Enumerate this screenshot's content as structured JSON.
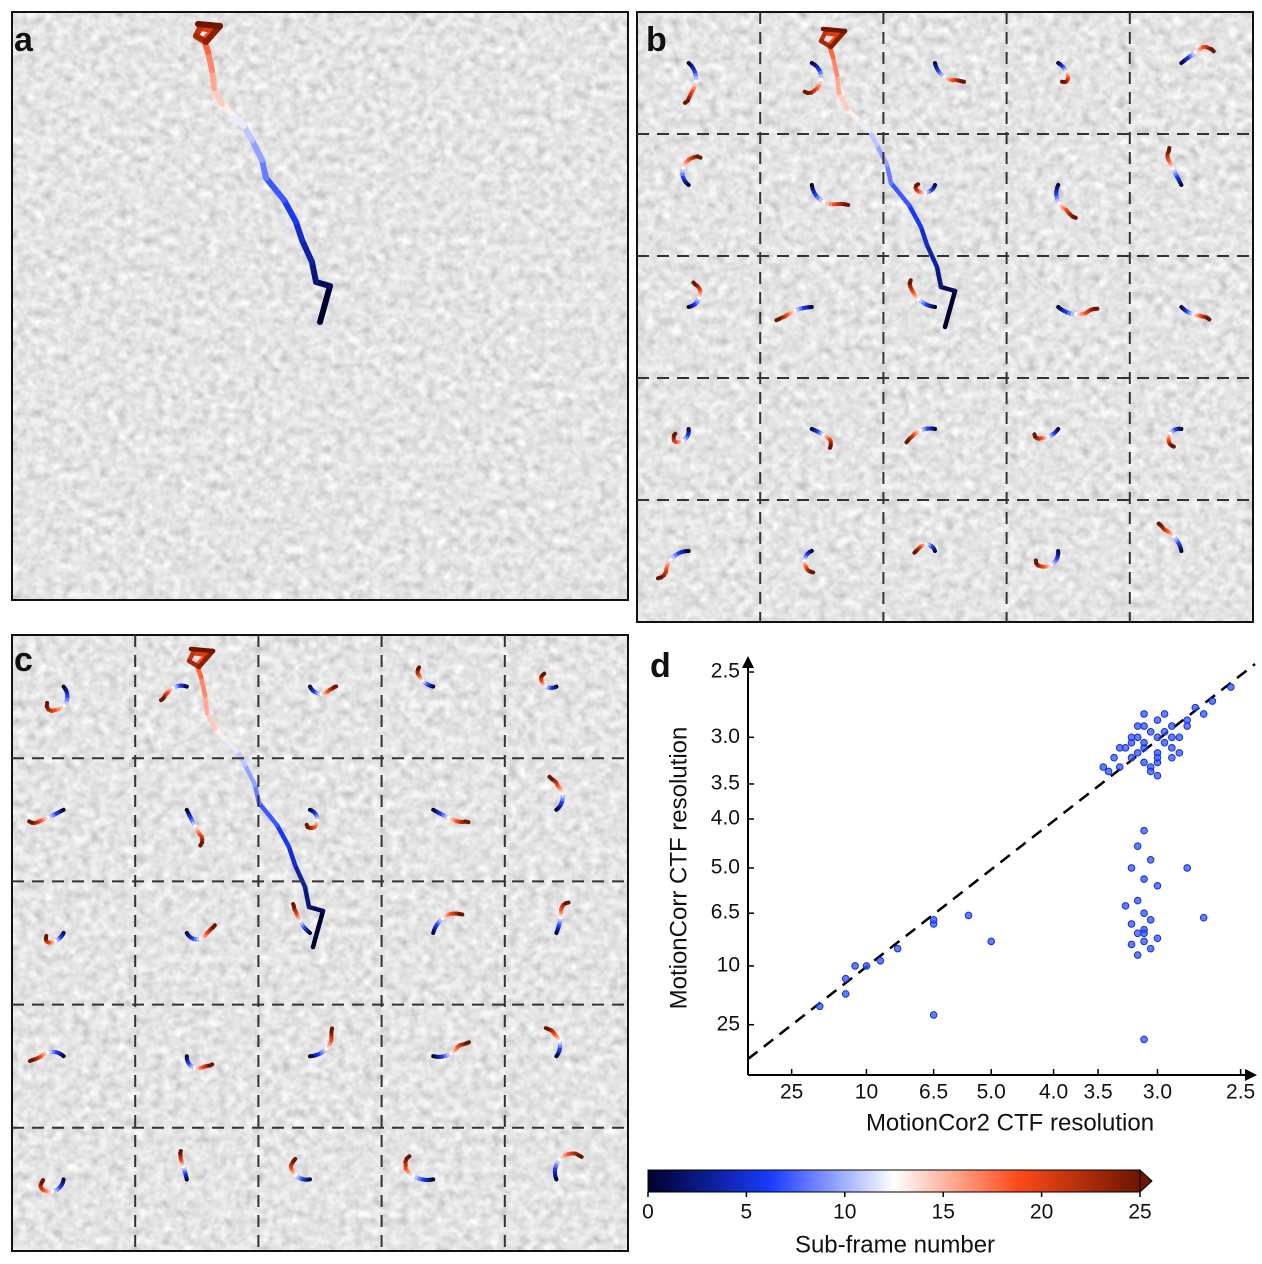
{
  "panels": [
    "a",
    "b",
    "c"
  ],
  "chart_data": {
    "type": "scatter",
    "panel_label": "d",
    "x_label": "MotionCor2 CTF resolution",
    "y_label": "MotionCorr CTF resolution",
    "scale": "reciprocal",
    "color": "#2f52ff",
    "xlim": [
      200,
      2.43
    ],
    "ylim": [
      200,
      2.45
    ],
    "xticks": [
      25,
      10,
      6.5,
      {
        "value": 5,
        "label": "5.0"
      },
      {
        "value": 4,
        "label": "4.0"
      },
      3.5,
      {
        "value": 3,
        "label": "3.0"
      },
      2.5
    ],
    "yticks": [
      2.5,
      {
        "value": 3,
        "label": "3.0"
      },
      3.5,
      {
        "value": 4,
        "label": "4.0"
      },
      {
        "value": 5,
        "label": "5.0"
      },
      6.5,
      10,
      25
    ],
    "x": [
      3.0,
      3.1,
      2.9,
      3.2,
      3.05,
      2.95,
      3.15,
      3.3,
      2.8,
      3.0,
      3.1,
      2.85,
      3.25,
      3.4,
      2.75,
      3.0,
      2.9,
      3.1,
      3.2,
      3.05,
      2.95,
      3.35,
      2.7,
      3.0,
      3.15,
      2.9,
      3.1,
      3.45,
      2.8,
      3.0,
      3.2,
      2.85,
      3.05,
      3.1,
      2.95,
      3.3,
      2.65,
      3.0,
      3.15,
      2.9,
      3.1,
      3.15,
      3.05,
      3.2,
      3.1,
      3.0,
      3.15,
      3.25,
      3.1,
      3.05,
      3.2,
      3.1,
      3.15,
      3.0,
      3.1,
      3.2,
      3.05,
      3.15,
      2.8,
      3.1,
      16,
      12,
      11,
      10,
      9,
      8,
      6.5,
      6.5,
      5.5,
      5.0,
      12,
      6.5,
      3.1,
      2.55,
      2.7
    ],
    "y": [
      3.0,
      3.1,
      2.9,
      3.2,
      2.95,
      3.05,
      3.15,
      3.3,
      2.85,
      3.25,
      2.8,
      3.0,
      3.1,
      3.35,
      2.75,
      3.15,
      3.2,
      2.9,
      3.05,
      3.3,
      2.95,
      3.2,
      2.8,
      3.4,
      3.0,
      3.1,
      3.25,
      3.3,
      2.9,
      2.85,
      3.0,
      3.15,
      3.35,
      3.05,
      2.8,
      3.1,
      2.7,
      3.2,
      2.9,
      3.0,
      4.2,
      4.5,
      4.8,
      5.0,
      5.3,
      5.5,
      6.0,
      6.2,
      6.5,
      6.8,
      7.0,
      7.3,
      7.5,
      7.8,
      8.0,
      8.2,
      8.5,
      9.0,
      5.0,
      7.5,
      17,
      11.5,
      10,
      10,
      9.5,
      8.5,
      7.0,
      6.8,
      6.6,
      8.0,
      14,
      20,
      40,
      2.6,
      6.7
    ]
  },
  "colorbar": {
    "label": "Sub-frame number",
    "lim": [
      0,
      25
    ],
    "ticks": [
      0,
      5,
      10,
      15,
      20,
      25
    ],
    "colors": [
      "#00002e",
      "#1a3cff",
      "#ffffff",
      "#ff4a1a",
      "#6e1500"
    ]
  }
}
